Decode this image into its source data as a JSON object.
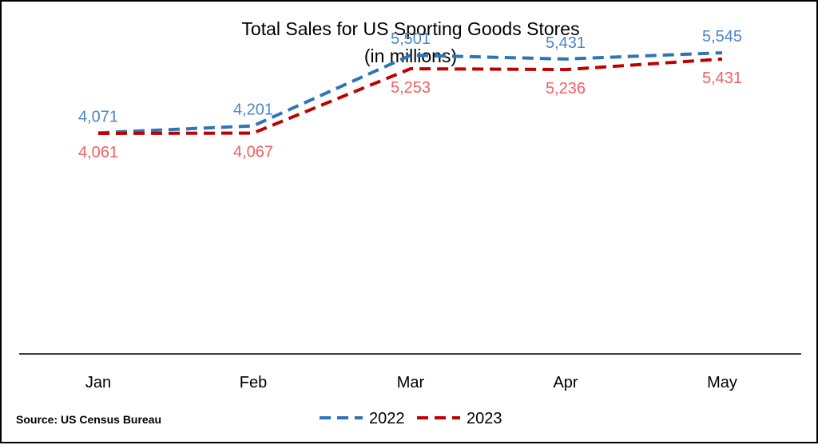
{
  "chart_data": {
    "type": "line",
    "title": "Total Sales for US Sporting Goods Stores",
    "subtitle": "(in millions)",
    "categories": [
      "Jan",
      "Feb",
      "Mar",
      "Apr",
      "May"
    ],
    "series": [
      {
        "name": "2022",
        "values": [
          4071,
          4201,
          5501,
          5431,
          5545
        ],
        "labels": [
          "4,071",
          "4,201",
          "5,501",
          "5,431",
          "5,545"
        ],
        "color": "#2E75B6",
        "label_color": "#4A86C8",
        "line_style": "dashed"
      },
      {
        "name": "2023",
        "values": [
          4061,
          4067,
          5253,
          5236,
          5431
        ],
        "labels": [
          "4,061",
          "4,067",
          "5,253",
          "5,236",
          "5,431"
        ],
        "color": "#C00000",
        "label_color": "#F26060",
        "line_style": "dashed"
      }
    ],
    "ylim": [
      0,
      5900
    ],
    "y_axis_visible": false,
    "grid": false,
    "legend_position": "bottom"
  },
  "source_note": "Source: US Census Bureau"
}
